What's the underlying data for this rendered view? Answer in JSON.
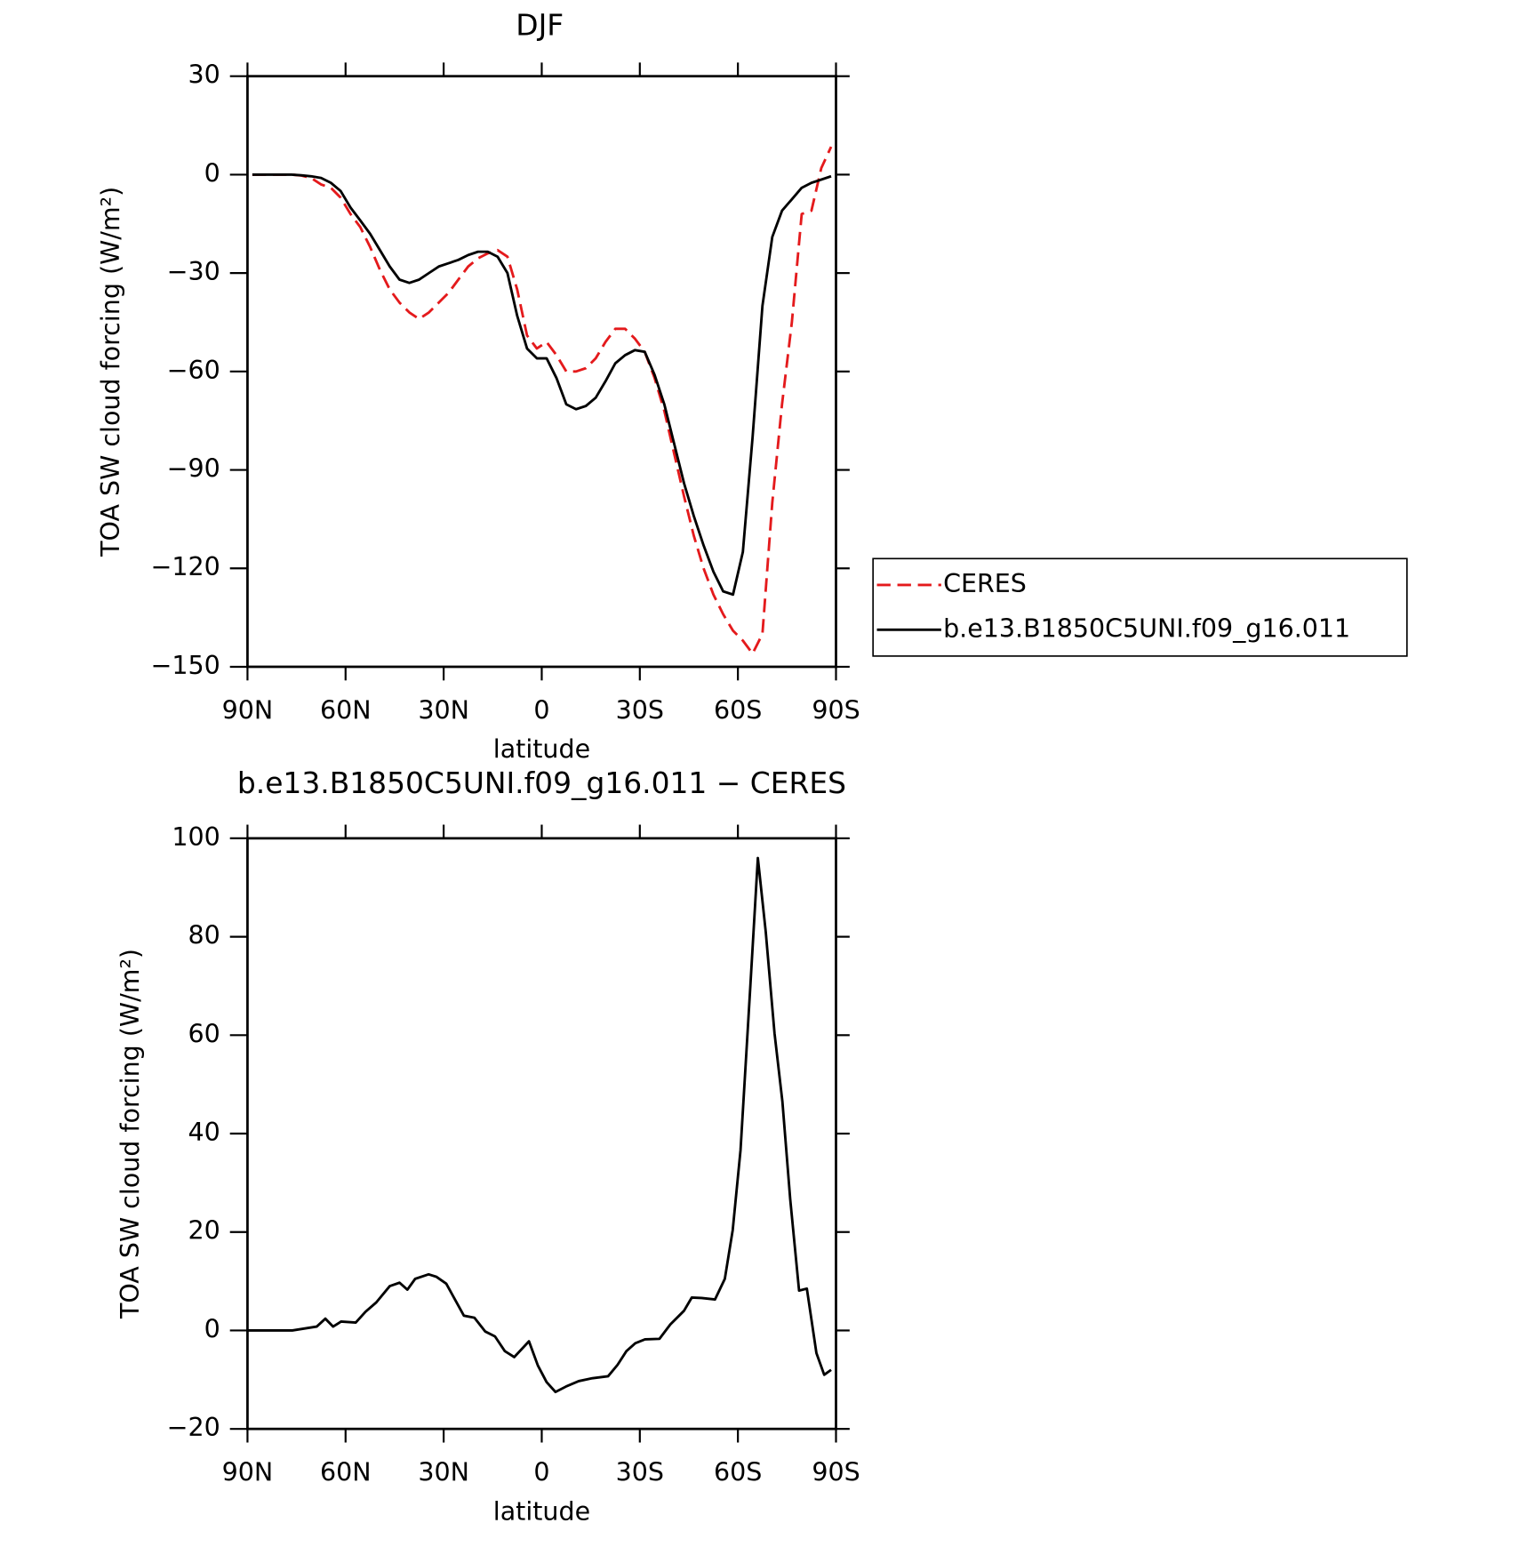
{
  "chart_data": [
    {
      "type": "line",
      "title": "DJF",
      "xlabel": "latitude",
      "ylabel": "TOA SW cloud forcing (W/m²)",
      "xlim": [
        90,
        -90
      ],
      "xticks": [
        {
          "value": 90,
          "label": "90N"
        },
        {
          "value": 60,
          "label": "60N"
        },
        {
          "value": 30,
          "label": "30N"
        },
        0,
        {
          "value": -30,
          "label": "30S"
        },
        {
          "value": -60,
          "label": "60S"
        },
        {
          "value": -90,
          "label": "90S"
        }
      ],
      "ylim": [
        -150,
        30
      ],
      "yticks": [
        30,
        0,
        {
          "value": -30,
          "label": "−30"
        },
        {
          "value": -60,
          "label": "−60"
        },
        {
          "value": -90,
          "label": "−90"
        },
        {
          "value": -120,
          "label": "−120"
        },
        {
          "value": -150,
          "label": "−150"
        }
      ],
      "legend": true,
      "x": [
        88.5,
        85.5,
        82.5,
        79.5,
        76.5,
        73.5,
        70.5,
        67.5,
        64.5,
        61.5,
        58.5,
        55.5,
        52.5,
        49.5,
        46.5,
        43.5,
        40.5,
        37.5,
        34.5,
        31.5,
        28.5,
        25.5,
        22.5,
        19.5,
        16.5,
        13.5,
        10.5,
        7.5,
        4.5,
        1.5,
        -1.5,
        -4.5,
        -7.5,
        -10.5,
        -13.5,
        -16.5,
        -19.5,
        -22.5,
        -25.5,
        -28.5,
        -31.5,
        -34.5,
        -37.5,
        -40.5,
        -43.5,
        -46.5,
        -49.5,
        -52.5,
        -55.5,
        -58.5,
        -61.5,
        -64.5,
        -67.5,
        -70.5,
        -73.5,
        -76.5,
        -79.5,
        -82.5,
        -85.5,
        -88.5
      ],
      "series": [
        {
          "name": "CERES",
          "color": "#e41a1c",
          "dash": true,
          "values": [
            0,
            0,
            0,
            0,
            0,
            -0.3,
            -1,
            -3,
            -4,
            -7,
            -12,
            -16,
            -22,
            -29,
            -35,
            -39,
            -42,
            -44,
            -42,
            -39,
            -36,
            -32,
            -28,
            -25.5,
            -24,
            -23,
            -25,
            -35,
            -49,
            -53,
            -51,
            -55,
            -60,
            -60,
            -59,
            -56,
            -51,
            -47,
            -47,
            -50,
            -54,
            -62,
            -72,
            -85,
            -98,
            -110,
            -120,
            -128,
            -134,
            -139,
            -142,
            -146,
            -140,
            -100,
            -70,
            -45,
            -12,
            -11,
            2,
            8.5
          ]
        },
        {
          "name": "b.e13.B1850C5UNI.f09_g16.011",
          "color": "#000000",
          "dash": false,
          "values": [
            0,
            0,
            0,
            0,
            0,
            -0.2,
            -0.5,
            -1,
            -2.5,
            -5,
            -10,
            -14,
            -18,
            -23,
            -28,
            -32,
            -33,
            -32,
            -30,
            -28,
            -27,
            -26,
            -24.5,
            -23.5,
            -23.5,
            -25,
            -30,
            -43,
            -53,
            -56,
            -56,
            -62,
            -70,
            -71.5,
            -70.5,
            -68,
            -63,
            -57.5,
            -55,
            -53.5,
            -54,
            -61,
            -70,
            -82,
            -94,
            -104,
            -113,
            -121,
            -127,
            -128,
            -115,
            -80,
            -40,
            -19,
            -11,
            -7.5,
            -4,
            -2.5,
            -1.5,
            -0.5
          ]
        }
      ]
    },
    {
      "type": "line",
      "title": "b.e13.B1850C5UNI.f09_g16.011 − CERES",
      "xlabel": "latitude",
      "ylabel": "TOA SW cloud forcing (W/m²)",
      "xlim": [
        90,
        -90
      ],
      "xticks": [
        {
          "value": 90,
          "label": "90N"
        },
        {
          "value": 60,
          "label": "60N"
        },
        {
          "value": 30,
          "label": "30N"
        },
        0,
        {
          "value": -30,
          "label": "30S"
        },
        {
          "value": -60,
          "label": "60S"
        },
        {
          "value": -90,
          "label": "90S"
        }
      ],
      "ylim": [
        -20,
        100
      ],
      "yticks": [
        100,
        80,
        60,
        40,
        20,
        0,
        {
          "value": -20,
          "label": "−20"
        }
      ],
      "x": [
        90,
        76.3,
        68.8,
        66.2,
        63.8,
        61.4,
        56.9,
        53.9,
        50.6,
        46.5,
        43.5,
        41.1,
        38.7,
        34.6,
        32.2,
        29.2,
        23.8,
        20.6,
        17.3,
        14.3,
        11.3,
        8.4,
        3.9,
        1.2,
        -1.5,
        -4.2,
        -7.7,
        -11.3,
        -15.5,
        -20.3,
        -23.2,
        -25.9,
        -28.6,
        -31.6,
        -36,
        -39.3,
        -43.5,
        -45.9,
        -48.9,
        -53,
        -56,
        -58.4,
        -60.8,
        -63.8,
        -66.1,
        -68.5,
        -71.2,
        -73.6,
        -76,
        -78.7,
        -81.1,
        -84,
        -86.4,
        -88.5
      ],
      "series": [
        {
          "color": "#000000",
          "dash": false,
          "values": [
            0,
            0,
            0.8,
            2.4,
            0.8,
            1.8,
            1.6,
            3.8,
            5.7,
            9,
            9.7,
            8.3,
            10.5,
            11.4,
            10.9,
            9.5,
            3,
            2.6,
            -0.2,
            -1.2,
            -4.2,
            -5.4,
            -2.2,
            -7.1,
            -10.5,
            -12.5,
            -11.3,
            -10.3,
            -9.7,
            -9.3,
            -7,
            -4.2,
            -2.6,
            -1.8,
            -1.7,
            1.2,
            4,
            6.7,
            6.6,
            6.3,
            10.5,
            20.4,
            36.6,
            70,
            96,
            81,
            60.4,
            46.5,
            26.7,
            8.1,
            8.5,
            -4.6,
            -9,
            -8
          ]
        }
      ]
    }
  ]
}
